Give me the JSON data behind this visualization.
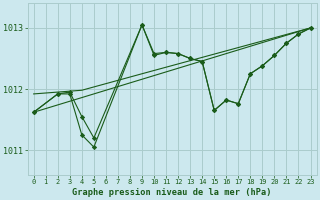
{
  "background_color": "#cce8ee",
  "grid_color": "#aacccc",
  "line_color": "#1a5c1a",
  "marker_color": "#1a5c1a",
  "title": "Graphe pression niveau de la mer (hPa)",
  "ylim": [
    1010.6,
    1013.4
  ],
  "xlim": [
    -0.5,
    23.5
  ],
  "yticks": [
    1011,
    1012,
    1013
  ],
  "xticks": [
    0,
    1,
    2,
    3,
    4,
    5,
    6,
    7,
    8,
    9,
    10,
    11,
    12,
    13,
    14,
    15,
    16,
    17,
    18,
    19,
    20,
    21,
    22,
    23
  ],
  "series": [
    {
      "x": [
        0,
        23
      ],
      "y": [
        1011.62,
        1013.0
      ],
      "marker": false
    },
    {
      "x": [
        0,
        4,
        9,
        23
      ],
      "y": [
        1011.92,
        1011.98,
        1012.25,
        1013.0
      ],
      "marker": false
    },
    {
      "x": [
        0,
        2,
        3,
        4,
        5,
        9,
        10,
        11,
        12,
        13,
        14,
        15,
        16,
        17,
        18,
        19,
        20,
        21,
        22,
        23
      ],
      "y": [
        1011.62,
        1011.92,
        1011.95,
        1011.55,
        1011.2,
        1013.05,
        1012.55,
        1012.6,
        1012.58,
        1012.5,
        1012.45,
        1011.65,
        1011.82,
        1011.76,
        1012.25,
        1012.38,
        1012.55,
        1012.75,
        1012.9,
        1013.0
      ],
      "marker": true
    },
    {
      "x": [
        0,
        2,
        3,
        4,
        5,
        9,
        10,
        11,
        12,
        13,
        14,
        15,
        16,
        17,
        18,
        19,
        20,
        21,
        22,
        23
      ],
      "y": [
        1011.62,
        1011.92,
        1011.92,
        1011.25,
        1011.05,
        1013.05,
        1012.58,
        1012.6,
        1012.58,
        1012.5,
        1012.45,
        1011.65,
        1011.82,
        1011.76,
        1012.25,
        1012.38,
        1012.55,
        1012.75,
        1012.9,
        1013.0
      ],
      "marker": true
    }
  ]
}
